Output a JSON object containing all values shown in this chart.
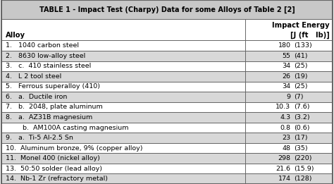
{
  "title": "TABLE 1 - Impact Test (Charpy) Data for some Alloys of Table 2 [2]",
  "col_header_left": "Alloy",
  "col_header_right_line1": "Impact Energy",
  "col_header_right_line2": "[J (ft   lb)]",
  "rows": [
    {
      "alloy": "1.   1040 carbon steel",
      "J": "180",
      "ftlb": "(133)"
    },
    {
      "alloy": "2.   8630 low-alloy steel",
      "J": "55",
      "ftlb": "(41)"
    },
    {
      "alloy": "3.   c.  410 stainless steel",
      "J": "34",
      "ftlb": "(25)"
    },
    {
      "alloy": "4.   L 2 tool steel",
      "J": "26",
      "ftlb": "(19)"
    },
    {
      "alloy": "5.   Ferrous superalloy (410)",
      "J": "34",
      "ftlb": "(25)"
    },
    {
      "alloy": "6.   a.  Ductile iron",
      "J": "9",
      "ftlb": "(7)"
    },
    {
      "alloy": "7.   b.  2048, plate aluminum",
      "J": "10.3",
      "ftlb": "(7.6)"
    },
    {
      "alloy": "8.   a.  AZ31B magnesium",
      "J": "4.3",
      "ftlb": "(3.2)"
    },
    {
      "alloy": "        b.  AM100A casting magnesium",
      "J": "0.8",
      "ftlb": "(0.6)"
    },
    {
      "alloy": "9.   a.  Ti-5 Al-2.5 Sn",
      "J": "23",
      "ftlb": "(17)"
    },
    {
      "alloy": "10.  Aluminum bronze, 9% (copper alloy)",
      "J": "48",
      "ftlb": "(35)"
    },
    {
      "alloy": "11.  Monel 400 (nickel alloy)",
      "J": "298",
      "ftlb": "(220)"
    },
    {
      "alloy": "13.  50:50 solder (lead alloy)",
      "J": "21.6",
      "ftlb": "(15.9)"
    },
    {
      "alloy": "14.  Nb-1 Zr (refractory metal)",
      "J": "174",
      "ftlb": "(128)"
    }
  ],
  "fig_bg": "#ffffff",
  "title_bg": "#c8c8c8",
  "subhdr_bg": "#ffffff",
  "row_bg_light": "#ffffff",
  "row_bg_dark": "#d8d8d8",
  "border_color": "#666666",
  "text_color": "#000000",
  "title_fontsize": 7.0,
  "header_fontsize": 7.2,
  "row_fontsize": 6.8,
  "col_split": 0.735
}
